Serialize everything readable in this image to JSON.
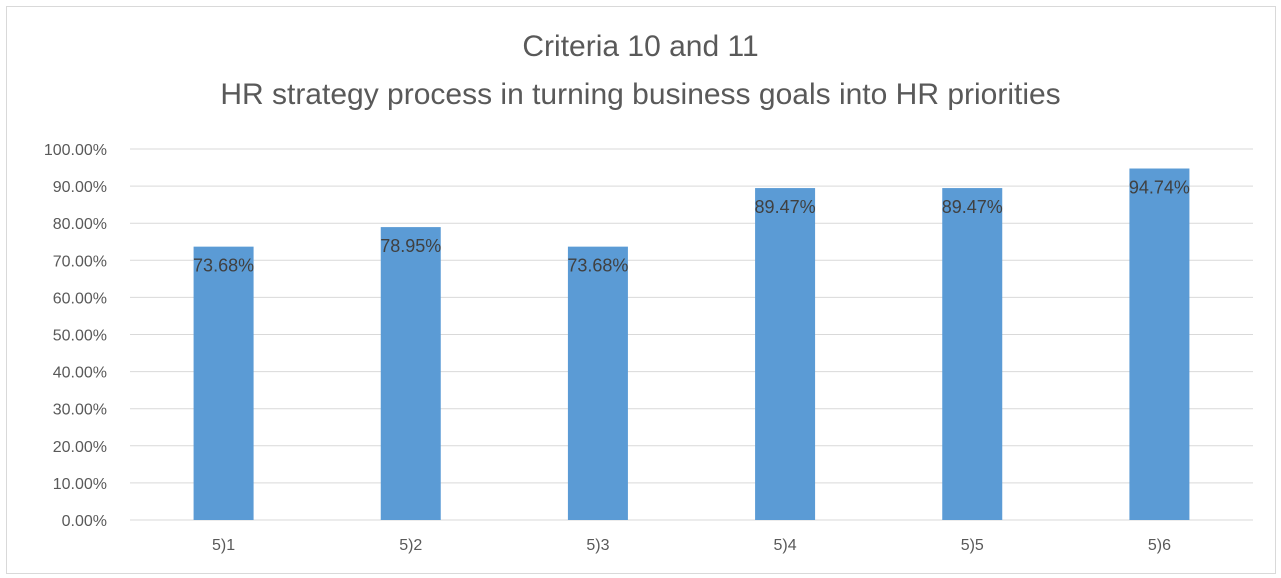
{
  "chart_data": {
    "type": "bar",
    "title": "Criteria 10 and 11",
    "subtitle": "HR strategy process in turning business goals into HR priorities",
    "xlabel": "",
    "ylabel": "",
    "categories": [
      "5)1",
      "5)2",
      "5)3",
      "5)4",
      "5)5",
      "5)6"
    ],
    "values": [
      73.68,
      78.95,
      73.68,
      89.47,
      89.47,
      94.74
    ],
    "data_labels": [
      "73.68%",
      "78.95%",
      "73.68%",
      "89.47%",
      "89.47%",
      "94.74%"
    ],
    "ylim": [
      0,
      100
    ],
    "yticks": [
      0,
      10,
      20,
      30,
      40,
      50,
      60,
      70,
      80,
      90,
      100
    ],
    "ytick_labels": [
      "0.00%",
      "10.00%",
      "20.00%",
      "30.00%",
      "40.00%",
      "50.00%",
      "60.00%",
      "70.00%",
      "80.00%",
      "90.00%",
      "100.00%"
    ],
    "grid": true,
    "legend": "none",
    "colors": {
      "bar": "#5b9bd5",
      "grid": "#d9d9d9",
      "text": "#595959",
      "data_label": "#404040"
    }
  }
}
